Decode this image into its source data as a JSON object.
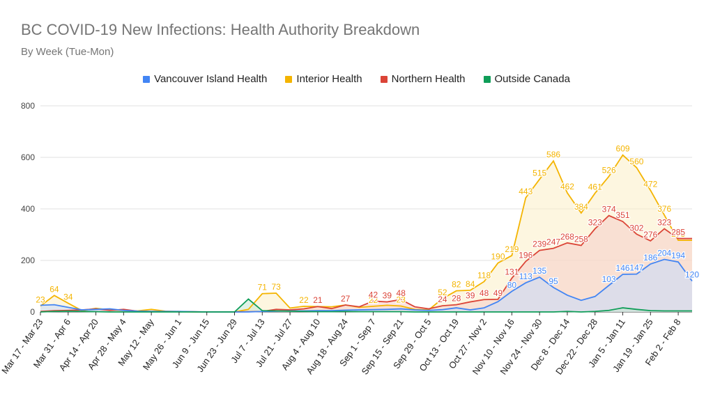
{
  "chart_data": {
    "type": "area",
    "title": "BC COVID-19 New Infections: Health Authority Breakdown",
    "subtitle": "By Week (Tue-Mon)",
    "ylim": [
      0,
      800
    ],
    "yticks": [
      0,
      200,
      400,
      600,
      800
    ],
    "legend_position": "top-center",
    "grid": true,
    "x": [
      "Mar 17 - Mar 23",
      "Mar 24 - Mar 30",
      "Mar 31 - Apr 6",
      "Apr 7 - Apr 13",
      "Apr 14 - Apr 20",
      "Apr 21 - Apr 27",
      "Apr 28 - May 4",
      "May 5 - May 11",
      "May 12 - May",
      "May 19 - May 25",
      "May 26 - Jun 1",
      "Jun 2 - Jun 8",
      "Jun 9 - Jun 15",
      "Jun 16 - Jun 22",
      "Jun 23 - Jun 29",
      "Jun 30 - Jul 6",
      "Jul 7 - Jul 13",
      "Jul 14 - Jul 20",
      "Jul 21 - Jul 27",
      "Jul 28 - Aug 3",
      "Aug 4 - Aug 10",
      "Aug 11 - Aug 17",
      "Aug 18 - Aug 24",
      "Aug 25 - Aug 31",
      "Sep 1 - Sep 7",
      "Sep 8 - Sep 14",
      "Sep 15 - Sep 21",
      "Sep 22 - Sep 28",
      "Sep 29 - Oct 5",
      "Oct 6 - Oct 12",
      "Oct 13 - Oct 19",
      "Oct 20 - Oct 26",
      "Oct 27 - Nov 2",
      "Nov 3 - Nov 9",
      "Nov 10 - Nov 16",
      "Nov 17 - Nov 23",
      "Nov 24 - Nov 30",
      "Dec 1 - Dec 7",
      "Dec 8 - Dec 14",
      "Dec 15 - Dec 21",
      "Dec 22 - Dec 28",
      "Dec 29 - Jan 4",
      "Jan 5 - Jan 11",
      "Jan 12 - Jan 18",
      "Jan 19 - Jan 25",
      "Jan 26 - Feb 1",
      "Feb 2 - Feb 8",
      "Feb 9 - Feb 15"
    ],
    "x_tick_labels": [
      "Mar 17 - Mar 23",
      "Mar 31 - Apr 6",
      "Apr 14 - Apr 20",
      "Apr 28 - May 4",
      "May 12 - May",
      "May 26 - Jun 1",
      "Jun 9 - Jun 15",
      "Jun 23 - Jun 29",
      "Jul 7 - Jul 13",
      "Jul 21 - Jul 27",
      "Aug 4 - Aug 10",
      "Aug 18 - Aug 24",
      "Sep 1 - Sep 7",
      "Sep 15 - Sep 21",
      "Sep 29 - Oct 5",
      "Oct 13 - Oct 19",
      "Oct 27 - Nov 2",
      "Nov 10 - Nov 16",
      "Nov 24 - Nov 30",
      "Dec 8 - Dec 14",
      "Dec 22 - Dec 28",
      "Jan 5 - Jan 11",
      "Jan 19 - Jan 25",
      "Feb 2 - Feb 8"
    ],
    "series": [
      {
        "name": "Vancouver Island Health",
        "color": "#4285F4",
        "fill": "#C6DAFC",
        "values": [
          26,
          28,
          18,
          8,
          10,
          12,
          6,
          3,
          2,
          2,
          2,
          1,
          0,
          0,
          0,
          0,
          2,
          3,
          4,
          4,
          5,
          5,
          7,
          8,
          9,
          10,
          12,
          8,
          6,
          9,
          16,
          8,
          16,
          40,
          80,
          113,
          135,
          95,
          65,
          45,
          60,
          103,
          146,
          147,
          186,
          204,
          194,
          120
        ],
        "labels": {
          "34": "80",
          "35": "113",
          "36": "135",
          "37": "95",
          "41": "103",
          "42": "146",
          "43": "147",
          "44": "186",
          "45": "204",
          "46": "194",
          "47": "120"
        }
      },
      {
        "name": "Interior Health",
        "color": "#F4B400",
        "fill": "#FCEFC7",
        "values": [
          23,
          64,
          34,
          5,
          14,
          8,
          6,
          4,
          10,
          3,
          2,
          0,
          0,
          0,
          0,
          10,
          71,
          73,
          15,
          22,
          21,
          20,
          27,
          18,
          22,
          26,
          23,
          10,
          8,
          52,
          82,
          84,
          118,
          190,
          219,
          443,
          515,
          586,
          462,
          384,
          461,
          526,
          609,
          560,
          472,
          376,
          278,
          278
        ],
        "labels": {
          "0": "23",
          "1": "64",
          "2": "34",
          "16": "71",
          "17": "73",
          "19": "22",
          "24": "22",
          "26": "23",
          "29": "52",
          "30": "82",
          "31": "84",
          "32": "118",
          "33": "190",
          "34": "219",
          "35": "443",
          "36": "515",
          "37": "586",
          "38": "462",
          "39": "384",
          "40": "461",
          "41": "526",
          "42": "609",
          "43": "560",
          "44": "472",
          "45": "376",
          "46": "278"
        }
      },
      {
        "name": "Northern Health",
        "color": "#DB4437",
        "fill": "#F6CDC9",
        "values": [
          2,
          5,
          6,
          8,
          12,
          6,
          10,
          3,
          2,
          2,
          1,
          1,
          0,
          0,
          0,
          1,
          2,
          10,
          8,
          12,
          21,
          13,
          27,
          20,
          42,
          39,
          48,
          20,
          12,
          24,
          28,
          39,
          48,
          49,
          131,
          196,
          239,
          247,
          268,
          258,
          323,
          374,
          351,
          302,
          276,
          323,
          285,
          285
        ],
        "labels": {
          "20": "21",
          "22": "27",
          "24": "42",
          "25": "39",
          "26": "48",
          "29": "24",
          "30": "28",
          "31": "39",
          "32": "48",
          "33": "49",
          "34": "131",
          "35": "196",
          "36": "239",
          "37": "247",
          "38": "268",
          "39": "258",
          "40": "323",
          "41": "374",
          "42": "351",
          "43": "302",
          "44": "276",
          "45": "323",
          "46": "285"
        }
      },
      {
        "name": "Outside Canada",
        "color": "#0F9D58",
        "fill": "#C6E8D3",
        "values": [
          0,
          2,
          3,
          2,
          1,
          0,
          0,
          0,
          0,
          0,
          0,
          0,
          0,
          0,
          0,
          50,
          5,
          4,
          3,
          2,
          1,
          1,
          2,
          1,
          1,
          1,
          1,
          0,
          0,
          0,
          0,
          0,
          0,
          0,
          0,
          0,
          0,
          0,
          2,
          0,
          2,
          6,
          16,
          10,
          5,
          4,
          4,
          4
        ],
        "labels": {}
      }
    ]
  }
}
